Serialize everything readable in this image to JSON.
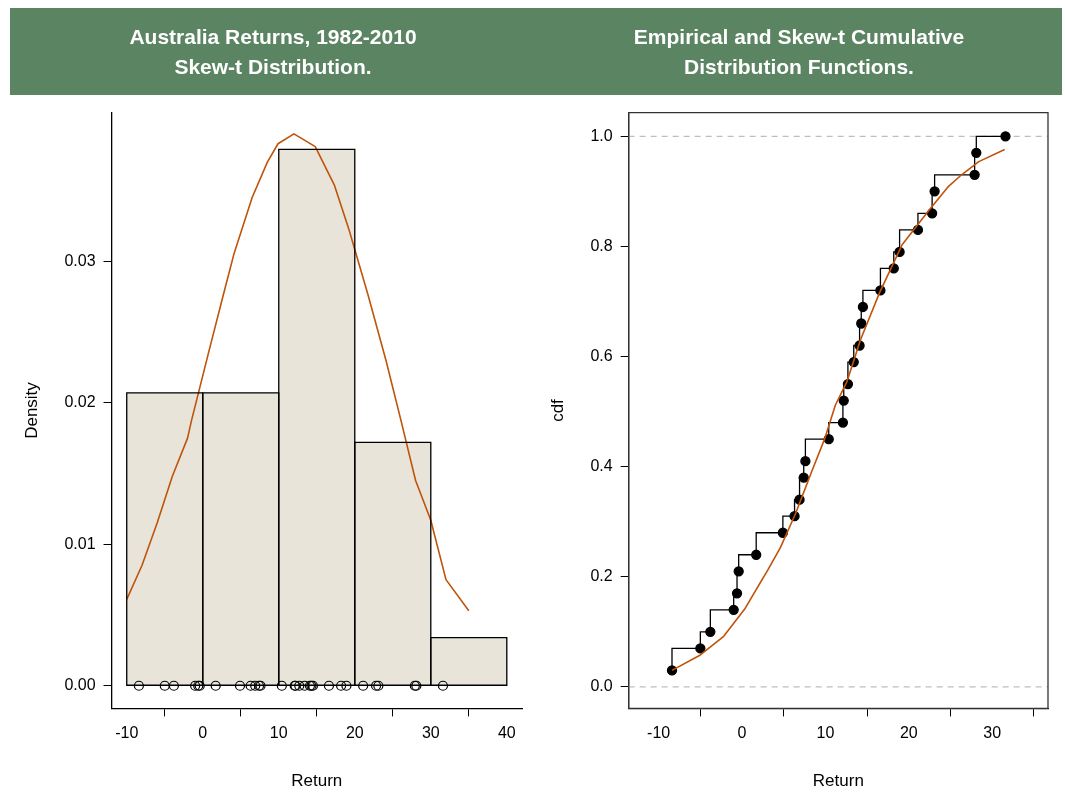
{
  "chart_data": [
    {
      "type": "histogram",
      "title": "Australia Returns, 1982-2010\nSkew-t Distribution.",
      "xlabel": "Return",
      "ylabel": "Density",
      "bins": [
        -10,
        0,
        10,
        20,
        30,
        40
      ],
      "values": [
        0.0207,
        0.0207,
        0.0379,
        0.0172,
        0.0034
      ],
      "color": "#e8e4da",
      "xlim": [
        -12,
        42
      ],
      "ylim": [
        -0.0016,
        0.0405
      ],
      "xticks": [
        -10,
        0,
        10,
        20,
        30,
        40
      ],
      "yticks": [
        {
          "value": 0,
          "label": "0.00"
        },
        {
          "value": 0.01,
          "label": "0.01"
        },
        {
          "value": 0.02,
          "label": "0.02"
        },
        {
          "value": 0.03,
          "label": "0.03"
        }
      ],
      "series": [
        {
          "type": "line",
          "color": "#c0530a",
          "marker": "none",
          "x": [
            -10,
            -8,
            -6,
            -4,
            -2,
            -1.5,
            0.7,
            2.6,
            4.1,
            6.5,
            8.5,
            9.9,
            12,
            14.8,
            17.3,
            19.2,
            21.7,
            24.1,
            26.1,
            28,
            30,
            32,
            35
          ],
          "values": [
            0.0061,
            0.0085,
            0.0115,
            0.0148,
            0.0175,
            0.0187,
            0.0234,
            0.0274,
            0.0305,
            0.0345,
            0.037,
            0.0383,
            0.039,
            0.0381,
            0.0354,
            0.0323,
            0.0277,
            0.023,
            0.0187,
            0.0145,
            0.0117,
            0.0075,
            0.0053
          ]
        },
        {
          "type": "scatter",
          "color": "#000000",
          "marker": "circle",
          "x": [
            -8.4,
            -5,
            -3.8,
            -1,
            -0.6,
            -0.4,
            1.7,
            4.9,
            6.3,
            6.9,
            7.4,
            7.6,
            10.4,
            12.1,
            12.2,
            12.7,
            13.4,
            14.1,
            14.3,
            14.5,
            16.6,
            18.2,
            18.9,
            21.1,
            22.8,
            23.1,
            27.9,
            28.1,
            31.6
          ],
          "values": [
            0,
            0,
            0,
            0,
            0,
            0,
            0,
            0,
            0,
            0,
            0,
            0,
            0,
            0,
            0,
            0,
            0,
            0,
            0,
            0,
            0,
            0,
            0,
            0,
            0,
            0,
            0,
            0,
            0
          ]
        }
      ]
    },
    {
      "type": "step",
      "title": "Empirical and Skew-t Cumulative\nDistribution Functions.",
      "xlabel": "Return",
      "ylabel": "cdf",
      "xlim": [
        -13.6,
        36.7
      ],
      "ylim": [
        -0.039,
        1.043
      ],
      "xticks": [
        -10,
        0,
        10,
        20,
        30
      ],
      "yticks": [
        {
          "value": 0,
          "label": "0.0"
        },
        {
          "value": 0.2,
          "label": "0.2"
        },
        {
          "value": 0.4,
          "label": "0.4"
        },
        {
          "value": 0.6,
          "label": "0.6"
        },
        {
          "value": 0.8,
          "label": "0.8"
        },
        {
          "value": 1,
          "label": "1.0"
        }
      ],
      "ref_lines": [
        {
          "axis": "y",
          "value": 0,
          "color": "#bebebe",
          "line_style": "dashed"
        },
        {
          "axis": "y",
          "value": 1,
          "color": "#bebebe",
          "line_style": "dashed"
        }
      ],
      "series": [
        {
          "type": "step",
          "color": "#000000",
          "marker": "circle",
          "x": [
            -8.4,
            -5,
            -3.8,
            -1,
            -0.6,
            -0.4,
            1.7,
            4.9,
            6.3,
            6.9,
            7.4,
            7.6,
            10.4,
            12.1,
            12.2,
            12.7,
            13.4,
            14.1,
            14.3,
            14.5,
            16.6,
            18.2,
            18.9,
            21.1,
            22.8,
            23.1,
            27.9,
            28.1,
            31.6
          ],
          "values": [
            0.03,
            0.07,
            0.1,
            0.14,
            0.17,
            0.21,
            0.24,
            0.28,
            0.31,
            0.34,
            0.38,
            0.41,
            0.45,
            0.48,
            0.52,
            0.55,
            0.59,
            0.62,
            0.66,
            0.69,
            0.72,
            0.76,
            0.79,
            0.83,
            0.86,
            0.9,
            0.93,
            0.97,
            1
          ]
        },
        {
          "type": "line",
          "color": "#c0530a",
          "marker": "none",
          "x": [
            -8.4,
            -5,
            -2.2,
            0.3,
            3,
            4.6,
            6.4,
            8.3,
            9.9,
            11.2,
            12.6,
            14.2,
            16.5,
            19.2,
            22.4,
            24.7,
            26.1,
            28.4,
            31.5
          ],
          "values": [
            0.03,
            0.058,
            0.092,
            0.141,
            0.21,
            0.253,
            0.314,
            0.389,
            0.45,
            0.512,
            0.555,
            0.63,
            0.716,
            0.803,
            0.865,
            0.908,
            0.927,
            0.954,
            0.976
          ]
        }
      ]
    }
  ]
}
